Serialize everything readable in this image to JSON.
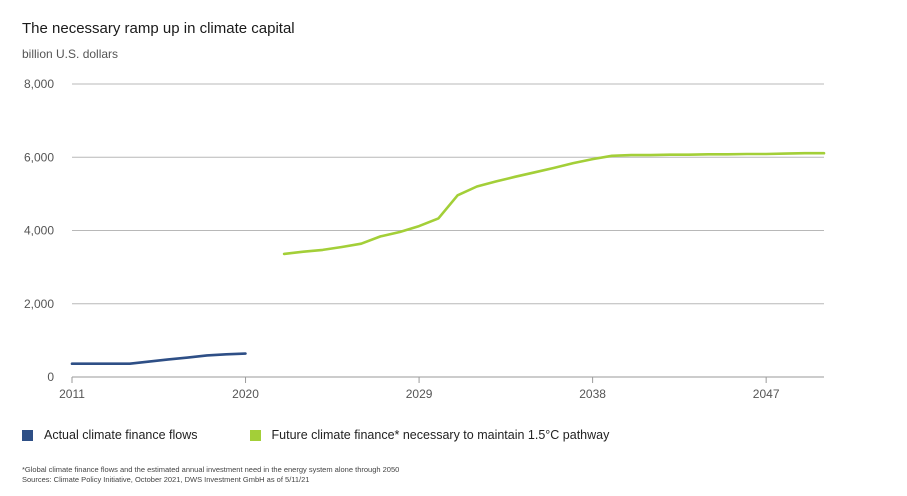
{
  "chart_data": {
    "type": "line",
    "title": "The necessary ramp up in climate capital",
    "subtitle": "billion U.S. dollars",
    "xlabel": "",
    "ylabel": "",
    "xlim": [
      2011,
      2050
    ],
    "ylim": [
      0,
      8000
    ],
    "x_ticks": [
      2011,
      2020,
      2029,
      2038,
      2047
    ],
    "y_ticks": [
      0,
      2000,
      4000,
      6000,
      8000
    ],
    "y_tick_labels": [
      "0",
      "2,000",
      "4,000",
      "6,000",
      "8,000"
    ],
    "grid": "horizontal",
    "legend_position": "bottom",
    "series": [
      {
        "name": "Actual climate finance flows",
        "color": "#2e4f86",
        "points": [
          [
            2011,
            364
          ],
          [
            2012,
            364
          ],
          [
            2013,
            364
          ],
          [
            2014,
            364
          ],
          [
            2015,
            420
          ],
          [
            2016,
            480
          ],
          [
            2017,
            530
          ],
          [
            2018,
            590
          ],
          [
            2019,
            620
          ],
          [
            2020,
            640
          ]
        ]
      },
      {
        "name": "Future climate finance* necessary to maintain 1.5°C pathway",
        "color": "#a3cf38",
        "points": [
          [
            2022,
            3360
          ],
          [
            2023,
            3420
          ],
          [
            2024,
            3470
          ],
          [
            2025,
            3550
          ],
          [
            2026,
            3640
          ],
          [
            2027,
            3840
          ],
          [
            2028,
            3960
          ],
          [
            2029,
            4120
          ],
          [
            2030,
            4330
          ],
          [
            2031,
            4960
          ],
          [
            2032,
            5200
          ],
          [
            2033,
            5340
          ],
          [
            2034,
            5470
          ],
          [
            2035,
            5590
          ],
          [
            2036,
            5710
          ],
          [
            2037,
            5840
          ],
          [
            2038,
            5950
          ],
          [
            2039,
            6040
          ],
          [
            2040,
            6060
          ],
          [
            2041,
            6060
          ],
          [
            2042,
            6070
          ],
          [
            2043,
            6070
          ],
          [
            2044,
            6080
          ],
          [
            2045,
            6080
          ],
          [
            2046,
            6090
          ],
          [
            2047,
            6090
          ],
          [
            2048,
            6100
          ],
          [
            2049,
            6110
          ],
          [
            2050,
            6110
          ]
        ]
      }
    ]
  },
  "legend": {
    "actual_label": "Actual climate finance flows",
    "actual_color": "#2e4f86",
    "future_label": "Future climate finance* necessary to maintain 1.5°C pathway",
    "future_color": "#a3cf38"
  },
  "footnote": {
    "line1": "*Global climate finance flows and the estimated annual investment need in the energy system alone through 2050",
    "line2": "Sources: Climate Policy Initiative, October 2021, DWS Investment GmbH as of 5/11/21"
  }
}
